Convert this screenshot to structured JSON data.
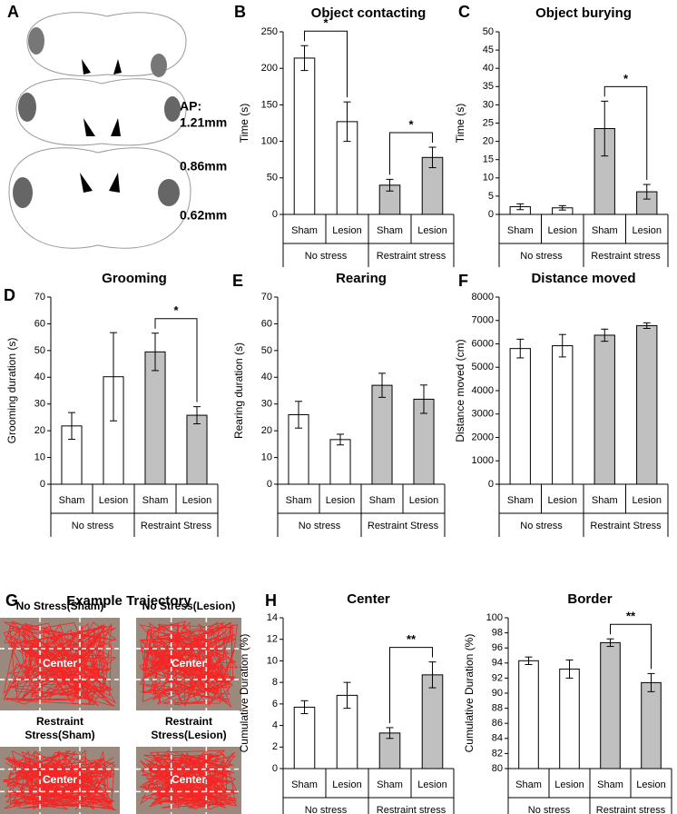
{
  "panel_a": {
    "label": "A",
    "annotations": [
      "AP:",
      "1.21mm",
      "0.86mm",
      "0.62mm"
    ]
  },
  "panel_g": {
    "label": "G",
    "title": "Example Trajectory",
    "maps": [
      {
        "title_lines": [
          "No Stress(Sham)"
        ],
        "center": "Center"
      },
      {
        "title_lines": [
          "No Stress(Lesion)"
        ],
        "center": "Center"
      },
      {
        "title_lines": [
          "Restraint",
          "Stress(Sham)"
        ],
        "center": "Center"
      },
      {
        "title_lines": [
          "Restraint",
          "Stress(Lesion)"
        ],
        "center": "Center"
      }
    ]
  },
  "chart_data": [
    {
      "panel": "B",
      "type": "bar",
      "title": "Object contacting",
      "ylabel": "Time (s)",
      "categories": [
        "Sham",
        "Lesion",
        "Sham",
        "Lesion"
      ],
      "groups": [
        "No stress",
        "Restraint stress"
      ],
      "values": [
        214,
        127,
        40,
        78
      ],
      "errors": [
        17,
        27,
        8,
        14
      ],
      "colors": [
        "#ffffff",
        "#ffffff",
        "#c0c0c0",
        "#c0c0c0"
      ],
      "ylim": [
        0,
        250
      ],
      "yticks": [
        0,
        50,
        100,
        150,
        200,
        250
      ],
      "significance": [
        {
          "from": 0,
          "to": 1,
          "label": "*"
        },
        {
          "from": 2,
          "to": 3,
          "label": "*"
        }
      ]
    },
    {
      "panel": "C",
      "type": "bar",
      "title": "Object burying",
      "ylabel": "Time (s)",
      "categories": [
        "Sham",
        "Lesion",
        "Sham",
        "Lesion"
      ],
      "groups": [
        "No stress",
        "Restraint stress"
      ],
      "values": [
        2.1,
        1.8,
        23.5,
        6.2
      ],
      "errors": [
        0.8,
        0.6,
        7.5,
        2
      ],
      "colors": [
        "#ffffff",
        "#ffffff",
        "#c0c0c0",
        "#c0c0c0"
      ],
      "ylim": [
        0,
        50
      ],
      "yticks": [
        0,
        5,
        10,
        15,
        20,
        25,
        30,
        35,
        40,
        45,
        50
      ],
      "significance": [
        {
          "from": 2,
          "to": 3,
          "label": "*"
        }
      ]
    },
    {
      "panel": "D",
      "type": "bar",
      "title": "Grooming",
      "ylabel": "Grooming duration (s)",
      "categories": [
        "Sham",
        "Lesion",
        "Sham",
        "Lesion"
      ],
      "groups": [
        "No stress",
        "Restraint Stress"
      ],
      "values": [
        21.8,
        40.2,
        49.5,
        25.8
      ],
      "errors": [
        5,
        16.5,
        7,
        3.2
      ],
      "colors": [
        "#ffffff",
        "#ffffff",
        "#c0c0c0",
        "#c0c0c0"
      ],
      "ylim": [
        0,
        70
      ],
      "yticks": [
        0,
        10,
        20,
        30,
        40,
        50,
        60,
        70
      ],
      "significance": [
        {
          "from": 2,
          "to": 3,
          "label": "*"
        }
      ]
    },
    {
      "panel": "E",
      "type": "bar",
      "title": "Rearing",
      "ylabel": "Rearing duration (s)",
      "categories": [
        "Sham",
        "Lesion",
        "Sham",
        "Lesion"
      ],
      "groups": [
        "No stress",
        "Restraint Stress"
      ],
      "values": [
        26,
        16.7,
        37,
        31.8
      ],
      "errors": [
        5,
        2,
        4.5,
        5.3
      ],
      "colors": [
        "#ffffff",
        "#ffffff",
        "#c0c0c0",
        "#c0c0c0"
      ],
      "ylim": [
        0,
        70
      ],
      "yticks": [
        0,
        10,
        20,
        30,
        40,
        50,
        60,
        70
      ],
      "significance": []
    },
    {
      "panel": "F",
      "type": "bar",
      "title": "Distance moved",
      "ylabel": "Distance moved (cm)",
      "categories": [
        "Sham",
        "Lesion",
        "Sham",
        "Lesion"
      ],
      "groups": [
        "No stress",
        "Restraint Stress"
      ],
      "values": [
        5800,
        5920,
        6370,
        6780
      ],
      "errors": [
        400,
        480,
        260,
        120
      ],
      "colors": [
        "#ffffff",
        "#ffffff",
        "#c0c0c0",
        "#c0c0c0"
      ],
      "ylim": [
        0,
        8000
      ],
      "yticks": [
        0,
        1000,
        2000,
        3000,
        4000,
        5000,
        6000,
        7000,
        8000
      ],
      "significance": []
    },
    {
      "panel": "H",
      "type": "bar",
      "title": "Center",
      "ylabel": "Cumulative Duration (%)",
      "categories": [
        "Sham",
        "Lesion",
        "Sham",
        "Lesion"
      ],
      "groups": [
        "No stress",
        "Restraint stress"
      ],
      "values": [
        5.7,
        6.8,
        3.3,
        8.7
      ],
      "errors": [
        0.6,
        1.2,
        0.5,
        1.2
      ],
      "colors": [
        "#ffffff",
        "#ffffff",
        "#c0c0c0",
        "#c0c0c0"
      ],
      "ylim": [
        0,
        14
      ],
      "yticks": [
        0,
        2,
        4,
        6,
        8,
        10,
        12,
        14
      ],
      "significance": [
        {
          "from": 2,
          "to": 3,
          "label": "**"
        }
      ]
    },
    {
      "type": "bar",
      "title": "Border",
      "ylabel": "Cumulative Duration (%)",
      "categories": [
        "Sham",
        "Lesion",
        "Sham",
        "Lesion"
      ],
      "groups": [
        "No stress",
        "Restraint stress"
      ],
      "values": [
        94.3,
        93.2,
        96.7,
        91.4
      ],
      "errors": [
        0.5,
        1.2,
        0.5,
        1.2
      ],
      "colors": [
        "#ffffff",
        "#ffffff",
        "#c0c0c0",
        "#c0c0c0"
      ],
      "ylim": [
        80,
        100
      ],
      "yticks": [
        80,
        82,
        84,
        86,
        88,
        90,
        92,
        94,
        96,
        98,
        100
      ],
      "significance": [
        {
          "from": 2,
          "to": 3,
          "label": "**"
        }
      ]
    }
  ]
}
